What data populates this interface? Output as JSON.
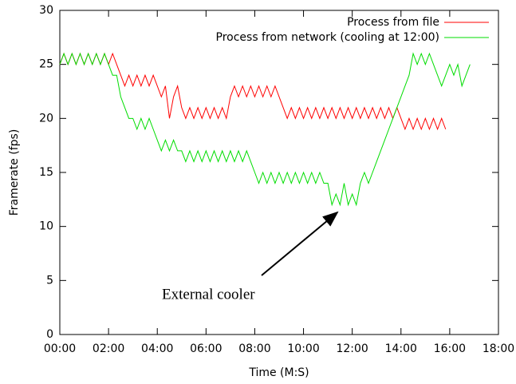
{
  "chart_data": {
    "type": "line",
    "xlabel": "Time (M:S)",
    "ylabel": "Framerate (fps)",
    "annotation": "External cooler",
    "xlim": [
      0,
      1080
    ],
    "xticks": [
      {
        "value": 0,
        "label": "00:00"
      },
      {
        "value": 120,
        "label": "02:00"
      },
      {
        "value": 240,
        "label": "04:00"
      },
      {
        "value": 360,
        "label": "06:00"
      },
      {
        "value": 480,
        "label": "08:00"
      },
      {
        "value": 600,
        "label": "10:00"
      },
      {
        "value": 720,
        "label": "12:00"
      },
      {
        "value": 840,
        "label": "14:00"
      },
      {
        "value": 960,
        "label": "16:00"
      },
      {
        "value": 1080,
        "label": "18:00"
      }
    ],
    "ylim": [
      0,
      30
    ],
    "yticks": [
      0,
      5,
      10,
      15,
      20,
      25,
      30
    ],
    "legend": "top-right",
    "series": [
      {
        "name": "Process from file",
        "color": "#ff0000",
        "x": [
          0,
          10,
          20,
          30,
          40,
          50,
          60,
          70,
          80,
          90,
          100,
          110,
          120,
          130,
          140,
          150,
          160,
          170,
          180,
          190,
          200,
          210,
          220,
          230,
          240,
          250,
          260,
          270,
          280,
          290,
          300,
          310,
          320,
          330,
          340,
          350,
          360,
          370,
          380,
          390,
          400,
          410,
          420,
          430,
          440,
          450,
          460,
          470,
          480,
          490,
          500,
          510,
          520,
          530,
          540,
          550,
          560,
          570,
          580,
          590,
          600,
          610,
          620,
          630,
          640,
          650,
          660,
          670,
          680,
          690,
          700,
          710,
          720,
          730,
          740,
          750,
          760,
          770,
          780,
          790,
          800,
          810,
          820,
          830,
          840,
          850,
          860,
          870,
          880,
          890,
          900,
          910,
          920,
          930,
          940,
          950
        ],
        "values": [
          25,
          26,
          25,
          26,
          25,
          26,
          25,
          26,
          25,
          26,
          25,
          26,
          25,
          26,
          25,
          24,
          23,
          24,
          23,
          24,
          23,
          24,
          23,
          24,
          23,
          22,
          23,
          20,
          22,
          23,
          21,
          20,
          21,
          20,
          21,
          20,
          21,
          20,
          21,
          20,
          21,
          20,
          22,
          23,
          22,
          23,
          22,
          23,
          22,
          23,
          22,
          23,
          22,
          23,
          22,
          21,
          20,
          21,
          20,
          21,
          20,
          21,
          20,
          21,
          20,
          21,
          20,
          21,
          20,
          21,
          20,
          21,
          20,
          21,
          20,
          21,
          20,
          21,
          20,
          21,
          20,
          21,
          20,
          21,
          20,
          19,
          20,
          19,
          20,
          19,
          20,
          19,
          20,
          19,
          20,
          19
        ]
      },
      {
        "name": "Process from network (cooling at 12:00)",
        "color": "#00dd00",
        "x": [
          0,
          10,
          20,
          30,
          40,
          50,
          60,
          70,
          80,
          90,
          100,
          110,
          120,
          130,
          140,
          150,
          160,
          170,
          180,
          190,
          200,
          210,
          220,
          230,
          240,
          250,
          260,
          270,
          280,
          290,
          300,
          310,
          320,
          330,
          340,
          350,
          360,
          370,
          380,
          390,
          400,
          410,
          420,
          430,
          440,
          450,
          460,
          470,
          480,
          490,
          500,
          510,
          520,
          530,
          540,
          550,
          560,
          570,
          580,
          590,
          600,
          610,
          620,
          630,
          640,
          650,
          660,
          670,
          680,
          690,
          700,
          710,
          720,
          730,
          740,
          750,
          760,
          770,
          780,
          790,
          800,
          810,
          820,
          830,
          840,
          850,
          860,
          870,
          880,
          890,
          900,
          910,
          920,
          930,
          940,
          950,
          960,
          970,
          980,
          990,
          1000,
          1010
        ],
        "values": [
          25,
          26,
          25,
          26,
          25,
          26,
          25,
          26,
          25,
          26,
          25,
          26,
          25,
          24,
          24,
          22,
          21,
          20,
          20,
          19,
          20,
          19,
          20,
          19,
          18,
          17,
          18,
          17,
          18,
          17,
          17,
          16,
          17,
          16,
          17,
          16,
          17,
          16,
          17,
          16,
          17,
          16,
          17,
          16,
          17,
          16,
          17,
          16,
          15,
          14,
          15,
          14,
          15,
          14,
          15,
          14,
          15,
          14,
          15,
          14,
          15,
          14,
          15,
          14,
          15,
          14,
          14,
          12,
          13,
          12,
          14,
          12,
          13,
          12,
          14,
          15,
          14,
          15,
          16,
          17,
          18,
          19,
          20,
          21,
          22,
          23,
          24,
          26,
          25,
          26,
          25,
          26,
          25,
          24,
          23,
          24,
          25,
          24,
          25,
          23,
          24,
          25
        ]
      }
    ]
  }
}
